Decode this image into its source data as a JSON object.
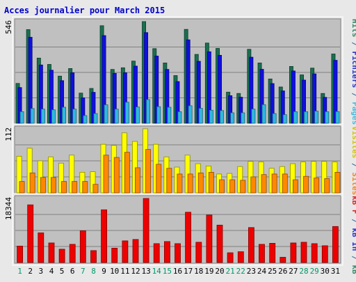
{
  "chart_data": {
    "title": "Acces journalier pour March 2015",
    "type": "bar",
    "x": [
      "1",
      "2",
      "3",
      "4",
      "5",
      "6",
      "7",
      "8",
      "9",
      "10",
      "11",
      "12",
      "13",
      "14",
      "15",
      "16",
      "17",
      "18",
      "19",
      "20",
      "21",
      "22",
      "23",
      "24",
      "25",
      "26",
      "27",
      "28",
      "29",
      "30",
      "31"
    ],
    "weekend": [
      1,
      7,
      8,
      14,
      15,
      21,
      22,
      28,
      29
    ],
    "panels": [
      {
        "id": "hits",
        "ymax_label": "546",
        "ymax": 546,
        "axis_labels": [
          {
            "text": "Hits",
            "color": "#338866"
          },
          {
            "text": " / ",
            "color": "#336699"
          },
          {
            "text": "Fichiers",
            "color": "#2233cc"
          },
          {
            "text": " / ",
            "color": "#336699"
          },
          {
            "text": "Pages",
            "color": "#44bbdd"
          }
        ],
        "series": [
          {
            "name": "Hits",
            "color": "#1a6f4f",
            "values": [
              214,
              503,
              350,
              316,
              253,
              294,
              162,
              187,
              524,
              289,
              298,
              334,
              546,
              401,
              324,
              256,
              504,
              370,
              431,
              402,
              167,
              160,
              397,
              324,
              238,
              195,
              305,
              260,
              296,
              160,
              372
            ]
          },
          {
            "name": "Fichiers",
            "color": "#1010e0",
            "values": [
              192,
              462,
              313,
              285,
              229,
              271,
              136,
              166,
              471,
              268,
              271,
              307,
              487,
              361,
              289,
              224,
              448,
              333,
              384,
              365,
              148,
              140,
              355,
              290,
              213,
              174,
              281,
              232,
              265,
              139,
              338
            ]
          },
          {
            "name": "Pages",
            "color": "#30b8e0",
            "values": [
              62,
              79,
              76,
              72,
              86,
              76,
              41,
              52,
              99,
              76,
              113,
              87,
              127,
              89,
              86,
              62,
              94,
              80,
              70,
              68,
              56,
              56,
              76,
              100,
              52,
              46,
              62,
              62,
              65,
              62,
              63
            ]
          }
        ]
      },
      {
        "id": "visits",
        "ymax_label": "112",
        "ymax": 112,
        "axis_labels": [
          {
            "text": "Visites",
            "color": "#d6c200"
          },
          {
            "text": " / ",
            "color": "#336699"
          },
          {
            "text": "Sites",
            "color": "#ee8822"
          }
        ],
        "series": [
          {
            "name": "Visites",
            "color": "#ffff00",
            "values": [
              64,
              78,
              56,
              63,
              52,
              66,
              36,
              37,
              85,
              83,
              105,
              90,
              112,
              85,
              63,
              45,
              66,
              51,
              47,
              33,
              34,
              46,
              55,
              54,
              43,
              46,
              51,
              54,
              55,
              55,
              54
            ]
          },
          {
            "name": "Sites",
            "color": "#ff8800",
            "values": [
              20,
              35,
              27,
              27,
              20,
              20,
              20,
              15,
              66,
              62,
              71,
              44,
              76,
              50,
              43,
              33,
              33,
              35,
              36,
              23,
              23,
              22,
              28,
              32,
              33,
              33,
              23,
              29,
              26,
              25,
              36
            ]
          }
        ]
      },
      {
        "id": "kbytes",
        "ymax_label": "18344",
        "ymax": 18344,
        "axis_labels": [
          {
            "text": "kB F",
            "color": "#dd2222"
          },
          {
            "text": " / ",
            "color": "#336699"
          },
          {
            "text": "kB In",
            "color": "#2233cc"
          },
          {
            "text": " / ",
            "color": "#336699"
          },
          {
            "text": "kB Out",
            "color": "#338866"
          }
        ],
        "series": [
          {
            "name": "kB F",
            "color": "#ee0000",
            "values": [
              4700,
              16500,
              8500,
              5600,
              3800,
              5200,
              9100,
              3400,
              15100,
              4100,
              6200,
              6600,
              18344,
              5400,
              6000,
              5400,
              14400,
              5800,
              13600,
              10700,
              2800,
              3100,
              10000,
              5200,
              5500,
              1500,
              5600,
              5800,
              5400,
              4800,
              10300
            ]
          }
        ]
      }
    ]
  }
}
